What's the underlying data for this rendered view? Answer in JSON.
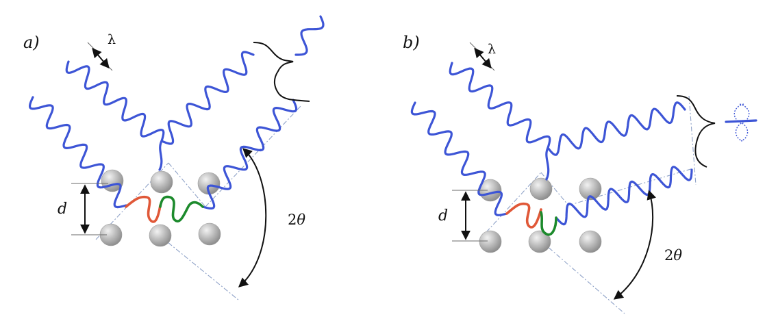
{
  "colors": {
    "wave": "#3d55d6",
    "path_a": "#e05838",
    "path_b": "#1c8a2c",
    "guide": "#8fa2c8",
    "atom_light": "#f2f2f2",
    "atom_dark": "#8a8a8a",
    "ink": "#111111"
  },
  "panels": [
    {
      "label": "a)",
      "wavelength_symbol": "λ",
      "spacing_symbol": "d",
      "angle_label": "2θ",
      "angle_symbol": "θ",
      "scattered_state": "in phase, amplitude doubled",
      "icons": [
        "double-arrow-icon",
        "curly-brace-icon",
        "wave-icon"
      ]
    },
    {
      "label": "b)",
      "wavelength_symbol": "λ",
      "spacing_symbol": "d",
      "angle_label": "2θ",
      "angle_symbol": "θ",
      "scattered_state": "out of phase, amplitudes cancel",
      "icons": [
        "double-arrow-icon",
        "curly-brace-icon",
        "cancelled-wave-icon"
      ]
    }
  ]
}
